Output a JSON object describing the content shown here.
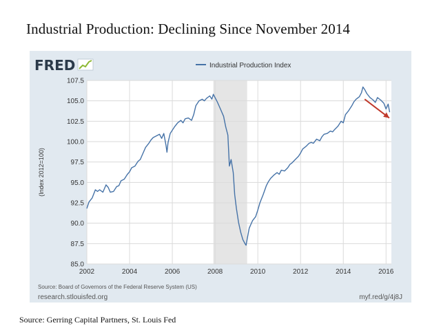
{
  "title": "Industrial Production: Declining Since November 2014",
  "footer_source": "Source: Gerring Capital Partners, St. Louis Fed",
  "fred": {
    "logo_text": "FRED",
    "source_note": "Source: Board of Governors of the Federal Reserve System (US)",
    "site": "research.stlouisfed.org",
    "short_url": "myf.red/g/4j8J"
  },
  "colors": {
    "line": "#4572a7",
    "arrow": "#c0392b",
    "recession": "#e5e5e5",
    "panel": "#e1e9f0",
    "grid": "#dadada",
    "fred_dark": "#2b3a4a",
    "fred_accent": "#8cb832"
  },
  "chart_data": {
    "type": "line",
    "title": "",
    "xlabel": "",
    "ylabel": "(Index 2012=100)",
    "xlim": [
      2002.0,
      2016.25
    ],
    "ylim": [
      85.0,
      107.5
    ],
    "grid": true,
    "legend": "top-center",
    "x_ticks": [
      2002,
      2004,
      2006,
      2008,
      2010,
      2012,
      2014,
      2016
    ],
    "y_ticks": [
      85.0,
      87.5,
      90.0,
      92.5,
      95.0,
      97.5,
      100.0,
      102.5,
      105.0,
      107.5
    ],
    "recession": [
      2007.92,
      2009.5
    ],
    "series": [
      {
        "name": "Industrial Production Index",
        "x": [
          2002.0,
          2002.1,
          2002.25,
          2002.4,
          2002.5,
          2002.6,
          2002.75,
          2002.9,
          2003.0,
          2003.1,
          2003.25,
          2003.4,
          2003.5,
          2003.6,
          2003.75,
          2003.9,
          2004.0,
          2004.1,
          2004.25,
          2004.4,
          2004.5,
          2004.6,
          2004.75,
          2004.9,
          2005.0,
          2005.1,
          2005.25,
          2005.4,
          2005.5,
          2005.6,
          2005.7,
          2005.75,
          2005.8,
          2005.9,
          2006.0,
          2006.1,
          2006.25,
          2006.4,
          2006.5,
          2006.6,
          2006.75,
          2006.9,
          2007.0,
          2007.1,
          2007.25,
          2007.4,
          2007.5,
          2007.6,
          2007.75,
          2007.85,
          2007.92,
          2008.0,
          2008.1,
          2008.25,
          2008.4,
          2008.5,
          2008.6,
          2008.67,
          2008.75,
          2008.85,
          2008.92,
          2009.0,
          2009.1,
          2009.2,
          2009.3,
          2009.4,
          2009.45,
          2009.5,
          2009.6,
          2009.75,
          2009.9,
          2010.0,
          2010.1,
          2010.25,
          2010.4,
          2010.5,
          2010.6,
          2010.75,
          2010.9,
          2011.0,
          2011.1,
          2011.25,
          2011.4,
          2011.5,
          2011.6,
          2011.75,
          2011.9,
          2012.0,
          2012.1,
          2012.25,
          2012.4,
          2012.5,
          2012.6,
          2012.75,
          2012.9,
          2013.0,
          2013.1,
          2013.25,
          2013.4,
          2013.5,
          2013.6,
          2013.75,
          2013.9,
          2014.0,
          2014.1,
          2014.25,
          2014.4,
          2014.5,
          2014.6,
          2014.75,
          2014.85,
          2014.92,
          2015.0,
          2015.1,
          2015.25,
          2015.4,
          2015.5,
          2015.6,
          2015.75,
          2015.9,
          2016.0,
          2016.1,
          2016.17
        ],
        "values": [
          91.8,
          92.6,
          93.1,
          94.1,
          93.9,
          94.1,
          93.8,
          94.7,
          94.4,
          93.8,
          93.9,
          94.5,
          94.6,
          95.2,
          95.4,
          96.0,
          96.3,
          96.8,
          97.0,
          97.6,
          97.8,
          98.4,
          99.3,
          99.8,
          100.2,
          100.5,
          100.7,
          100.9,
          100.4,
          101.0,
          99.6,
          98.7,
          99.9,
          101.0,
          101.4,
          101.8,
          102.3,
          102.6,
          102.3,
          102.8,
          102.9,
          102.6,
          103.3,
          104.4,
          105.0,
          105.2,
          105.0,
          105.3,
          105.6,
          105.2,
          105.8,
          105.4,
          104.9,
          104.0,
          103.1,
          101.8,
          100.8,
          97.0,
          97.8,
          96.2,
          93.5,
          91.8,
          90.1,
          88.9,
          88.0,
          87.5,
          87.3,
          88.0,
          89.4,
          90.3,
          90.8,
          91.6,
          92.5,
          93.5,
          94.6,
          95.1,
          95.5,
          95.9,
          96.2,
          96.0,
          96.5,
          96.4,
          96.8,
          97.2,
          97.4,
          97.8,
          98.2,
          98.6,
          99.1,
          99.4,
          99.8,
          99.9,
          99.8,
          100.3,
          100.1,
          100.6,
          100.9,
          101.0,
          101.3,
          101.2,
          101.5,
          101.9,
          102.5,
          102.3,
          103.3,
          103.8,
          104.4,
          104.9,
          105.2,
          105.5,
          106.0,
          106.7,
          106.4,
          105.9,
          105.4,
          105.1,
          104.8,
          105.4,
          105.1,
          104.7,
          104.0,
          104.6,
          103.6
        ]
      }
    ],
    "annotations": [
      {
        "type": "arrow",
        "from": [
          2015.0,
          105.2
        ],
        "to": [
          2016.15,
          102.9
        ]
      }
    ]
  }
}
